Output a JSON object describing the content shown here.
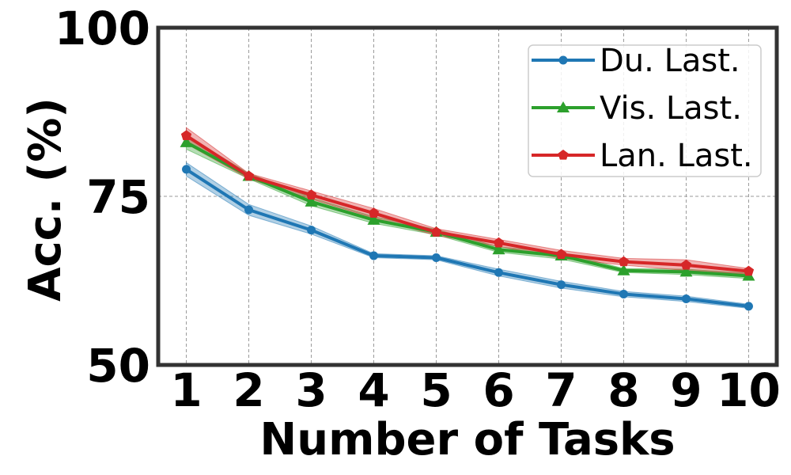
{
  "chart_data": {
    "type": "line",
    "x": [
      1,
      2,
      3,
      4,
      5,
      6,
      7,
      8,
      9,
      10
    ],
    "xlabel": "Number of Tasks",
    "ylabel": "Acc. (%)",
    "xlim": [
      0.55,
      10.45
    ],
    "ylim": [
      50,
      100
    ],
    "yticks": [
      50,
      75,
      100
    ],
    "xticks": [
      1,
      2,
      3,
      4,
      5,
      6,
      7,
      8,
      9,
      10
    ],
    "grid": true,
    "legend_position": "top-right",
    "series": [
      {
        "name": "Du. Last.",
        "color": "#1f77b4",
        "marker": "circle",
        "values": [
          79.0,
          73.0,
          70.0,
          66.2,
          65.9,
          63.7,
          61.9,
          60.5,
          59.8,
          58.7
        ],
        "lower": [
          78.0,
          72.2,
          69.4,
          65.9,
          65.6,
          63.2,
          61.4,
          60.1,
          59.4,
          58.4
        ],
        "upper": [
          80.0,
          73.8,
          70.6,
          66.5,
          66.2,
          64.2,
          62.4,
          60.9,
          60.2,
          59.0
        ]
      },
      {
        "name": "Vis. Last.",
        "color": "#2ca02c",
        "marker": "triangle",
        "values": [
          83.0,
          78.0,
          74.2,
          71.5,
          69.7,
          67.1,
          66.2,
          64.0,
          63.8,
          63.2
        ],
        "lower": [
          82.0,
          77.6,
          73.6,
          71.0,
          69.3,
          66.7,
          65.7,
          63.7,
          63.4,
          62.8
        ],
        "upper": [
          84.0,
          78.4,
          74.8,
          72.0,
          70.1,
          67.5,
          66.7,
          64.3,
          64.2,
          63.6
        ]
      },
      {
        "name": "Lan. Last.",
        "color": "#d62728",
        "marker": "pentagon",
        "values": [
          84.0,
          78.0,
          75.2,
          72.5,
          69.7,
          68.1,
          66.4,
          65.3,
          64.8,
          63.9
        ],
        "lower": [
          82.8,
          77.6,
          74.6,
          71.8,
          69.2,
          67.6,
          65.8,
          64.8,
          64.0,
          63.5
        ],
        "upper": [
          85.2,
          78.4,
          75.8,
          73.2,
          70.2,
          68.6,
          67.0,
          65.8,
          65.6,
          64.3
        ]
      }
    ]
  }
}
